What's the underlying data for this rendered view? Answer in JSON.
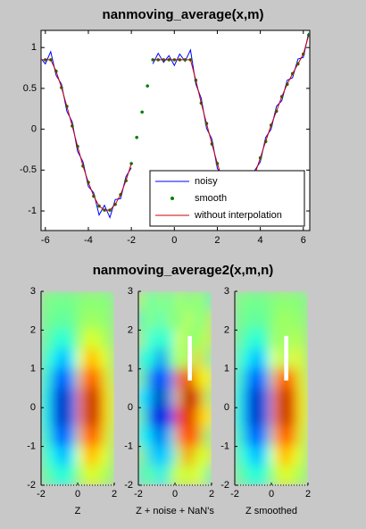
{
  "chart_data": [
    {
      "type": "line",
      "title": "nanmoving_average(x,m)",
      "x": [
        -6.25,
        -6,
        -5.75,
        -5.5,
        -5.25,
        -5,
        -4.75,
        -4.5,
        -4.25,
        -4,
        -3.75,
        -3.5,
        -3.25,
        -3,
        -2.75,
        -2.5,
        -2.25,
        -2,
        -1.75,
        -1.5,
        -1.25,
        -1,
        -0.75,
        -0.5,
        -0.25,
        0,
        0.25,
        0.5,
        0.75,
        1,
        1.25,
        1.5,
        1.75,
        2,
        2.25,
        2.5,
        2.75,
        3,
        3.25,
        3.5,
        3.75,
        4,
        4.25,
        4.5,
        4.75,
        5,
        5.25,
        5.5,
        5.75,
        6,
        6.25
      ],
      "series": [
        {
          "name": "noisy",
          "color": "#0000ff",
          "style": "line",
          "values": [
            0.88,
            0.8,
            0.95,
            0.66,
            0.55,
            0.22,
            0.09,
            -0.27,
            -0.4,
            -0.7,
            -0.78,
            -1.05,
            -0.93,
            -1.08,
            -0.86,
            -0.85,
            -0.58,
            -0.47,
            null,
            null,
            null,
            0.8,
            0.93,
            0.82,
            0.9,
            0.78,
            0.92,
            0.83,
            0.97,
            0.55,
            0.38,
            0.01,
            -0.12,
            -0.48,
            -0.58,
            -0.86,
            -0.88,
            -1.03,
            -0.84,
            -0.8,
            -0.5,
            -0.4,
            -0.1,
            0,
            0.28,
            0.35,
            0.6,
            0.63,
            0.86,
            0.88,
            1.18
          ]
        },
        {
          "name": "smooth",
          "color": "#008000",
          "style": "dots",
          "values": [
            0.85,
            0.85,
            0.85,
            0.71,
            0.51,
            0.28,
            0.04,
            -0.21,
            -0.45,
            -0.65,
            -0.82,
            -0.94,
            -0.99,
            -0.99,
            -0.92,
            -0.8,
            -0.63,
            -0.42,
            -0.1,
            0.21,
            0.53,
            0.85,
            0.85,
            0.85,
            0.85,
            0.85,
            0.85,
            0.85,
            0.85,
            0.6,
            0.32,
            0.07,
            -0.18,
            -0.42,
            -0.63,
            -0.8,
            -0.92,
            -0.97,
            -0.9,
            -0.75,
            -0.55,
            -0.35,
            -0.15,
            0.05,
            0.22,
            0.4,
            0.55,
            0.68,
            0.8,
            0.92,
            1.15
          ]
        },
        {
          "name": "without interpolation",
          "color": "#cc0000",
          "style": "line",
          "values": [
            0.85,
            0.85,
            0.85,
            0.71,
            0.51,
            0.28,
            0.04,
            -0.21,
            -0.45,
            -0.65,
            -0.82,
            -0.94,
            -0.99,
            -0.99,
            -0.92,
            -0.8,
            -0.63,
            -0.42,
            null,
            null,
            null,
            0.85,
            0.85,
            0.85,
            0.85,
            0.85,
            0.85,
            0.85,
            0.85,
            0.6,
            0.32,
            0.07,
            -0.18,
            -0.42,
            -0.63,
            -0.8,
            -0.92,
            -0.97,
            -0.9,
            -0.75,
            -0.55,
            -0.35,
            -0.15,
            0.05,
            0.22,
            0.4,
            0.55,
            0.68,
            0.8,
            0.92,
            1.15
          ]
        }
      ],
      "xlim": [
        -6.2,
        6.3
      ],
      "ylim": [
        -1.24,
        1.21
      ],
      "xticks": [
        -6,
        -4,
        -2,
        0,
        2,
        4,
        6
      ],
      "yticks": [
        -1,
        -0.5,
        0,
        0.5,
        1
      ],
      "legend": "lower right"
    },
    {
      "type": "heatmap",
      "title": "nanmoving_average2(x,m,n)",
      "clim": [
        -0.45,
        0.45
      ],
      "colormap": "jet",
      "panels": [
        {
          "xlabel": "Z",
          "xlim": [
            -2,
            2
          ],
          "ylim": [
            -2,
            3
          ],
          "xticks": [
            -2,
            0,
            2
          ],
          "yticks": [
            -2,
            -1,
            0,
            1,
            2,
            3
          ],
          "values": [
            [
              0,
              -0.01,
              -0.01,
              -0.01,
              0.01,
              0.01,
              0.01,
              0
            ],
            [
              -0.01,
              -0.02,
              -0.03,
              -0.02,
              0.02,
              0.03,
              0.02,
              0.01
            ],
            [
              -0.02,
              -0.06,
              -0.09,
              -0.05,
              0.05,
              0.09,
              0.06,
              0.02
            ],
            [
              -0.04,
              -0.12,
              -0.2,
              -0.11,
              0.11,
              0.2,
              0.12,
              0.04
            ],
            [
              -0.06,
              -0.2,
              -0.32,
              -0.18,
              0.18,
              0.32,
              0.2,
              0.06
            ],
            [
              -0.08,
              -0.25,
              -0.42,
              -0.23,
              0.23,
              0.42,
              0.25,
              0.08
            ],
            [
              -0.08,
              -0.25,
              -0.42,
              -0.23,
              0.23,
              0.42,
              0.25,
              0.08
            ],
            [
              -0.06,
              -0.2,
              -0.32,
              -0.18,
              0.18,
              0.32,
              0.2,
              0.06
            ],
            [
              -0.04,
              -0.12,
              -0.2,
              -0.11,
              0.11,
              0.2,
              0.12,
              0.04
            ],
            [
              -0.02,
              -0.06,
              -0.09,
              -0.05,
              0.05,
              0.09,
              0.06,
              0.02
            ]
          ]
        },
        {
          "xlabel": "Z + noise + NaN's",
          "xlim": [
            -2,
            2
          ],
          "ylim": [
            -2,
            3
          ],
          "xticks": [
            -2,
            0,
            2
          ],
          "yticks": [
            -2,
            -1,
            0,
            1,
            2,
            3
          ],
          "values": [
            [
              0.04,
              -0.05,
              0.03,
              -0.04,
              0.05,
              -0.02,
              0.04,
              -0.03
            ],
            [
              -0.05,
              0.02,
              -0.07,
              0.03,
              -0.02,
              0.07,
              -0.02,
              0.05
            ],
            [
              0.02,
              -0.1,
              -0.05,
              -0.09,
              0.09,
              null,
              0.02,
              0.06
            ],
            [
              -0.08,
              -0.08,
              -0.25,
              -0.06,
              0.07,
              null,
              0.16,
              0
            ],
            [
              -0.02,
              -0.25,
              -0.28,
              -0.22,
              0.23,
              0.36,
              0.15,
              0.1
            ],
            [
              -0.12,
              -0.21,
              -0.45,
              -0.19,
              0.19,
              0.45,
              0.3,
              0.04
            ],
            [
              -0.04,
              -0.3,
              -0.38,
              -0.27,
              0.27,
              0.38,
              0.21,
              0.12
            ],
            [
              -0.1,
              -0.16,
              -0.36,
              -0.14,
              0.22,
              0.28,
              0.24,
              0.02
            ],
            [
              0,
              -0.16,
              -0.16,
              -0.15,
              0.07,
              0.24,
              0.08,
              0.08
            ],
            [
              -0.06,
              -0.02,
              -0.13,
              -0.01,
              0.09,
              0.05,
              0.1,
              -0.02
            ]
          ]
        },
        {
          "xlabel": "Z smoothed",
          "xlim": [
            -2,
            2
          ],
          "ylim": [
            -2,
            3
          ],
          "xticks": [
            -2,
            0,
            2
          ],
          "yticks": [
            -2,
            -1,
            0,
            1,
            2,
            3
          ],
          "values": [
            [
              0,
              -0.01,
              -0.01,
              -0.01,
              0.01,
              0.01,
              0.01,
              0
            ],
            [
              -0.01,
              -0.02,
              -0.03,
              -0.02,
              0.02,
              0.03,
              0.02,
              0.01
            ],
            [
              -0.02,
              -0.06,
              -0.09,
              -0.05,
              0.05,
              null,
              0.06,
              0.02
            ],
            [
              -0.04,
              -0.12,
              -0.2,
              -0.11,
              0.11,
              null,
              0.12,
              0.04
            ],
            [
              -0.06,
              -0.2,
              -0.32,
              -0.18,
              0.18,
              0.32,
              0.2,
              0.06
            ],
            [
              -0.08,
              -0.25,
              -0.42,
              -0.23,
              0.23,
              0.42,
              0.25,
              0.08
            ],
            [
              -0.08,
              -0.25,
              -0.42,
              -0.23,
              0.23,
              0.42,
              0.25,
              0.08
            ],
            [
              -0.06,
              -0.2,
              -0.32,
              -0.18,
              0.18,
              0.32,
              0.2,
              0.06
            ],
            [
              -0.04,
              -0.12,
              -0.2,
              -0.11,
              0.11,
              0.2,
              0.12,
              0.04
            ],
            [
              -0.02,
              -0.06,
              -0.09,
              -0.05,
              0.05,
              0.09,
              0.06,
              0.02
            ]
          ]
        }
      ]
    }
  ]
}
